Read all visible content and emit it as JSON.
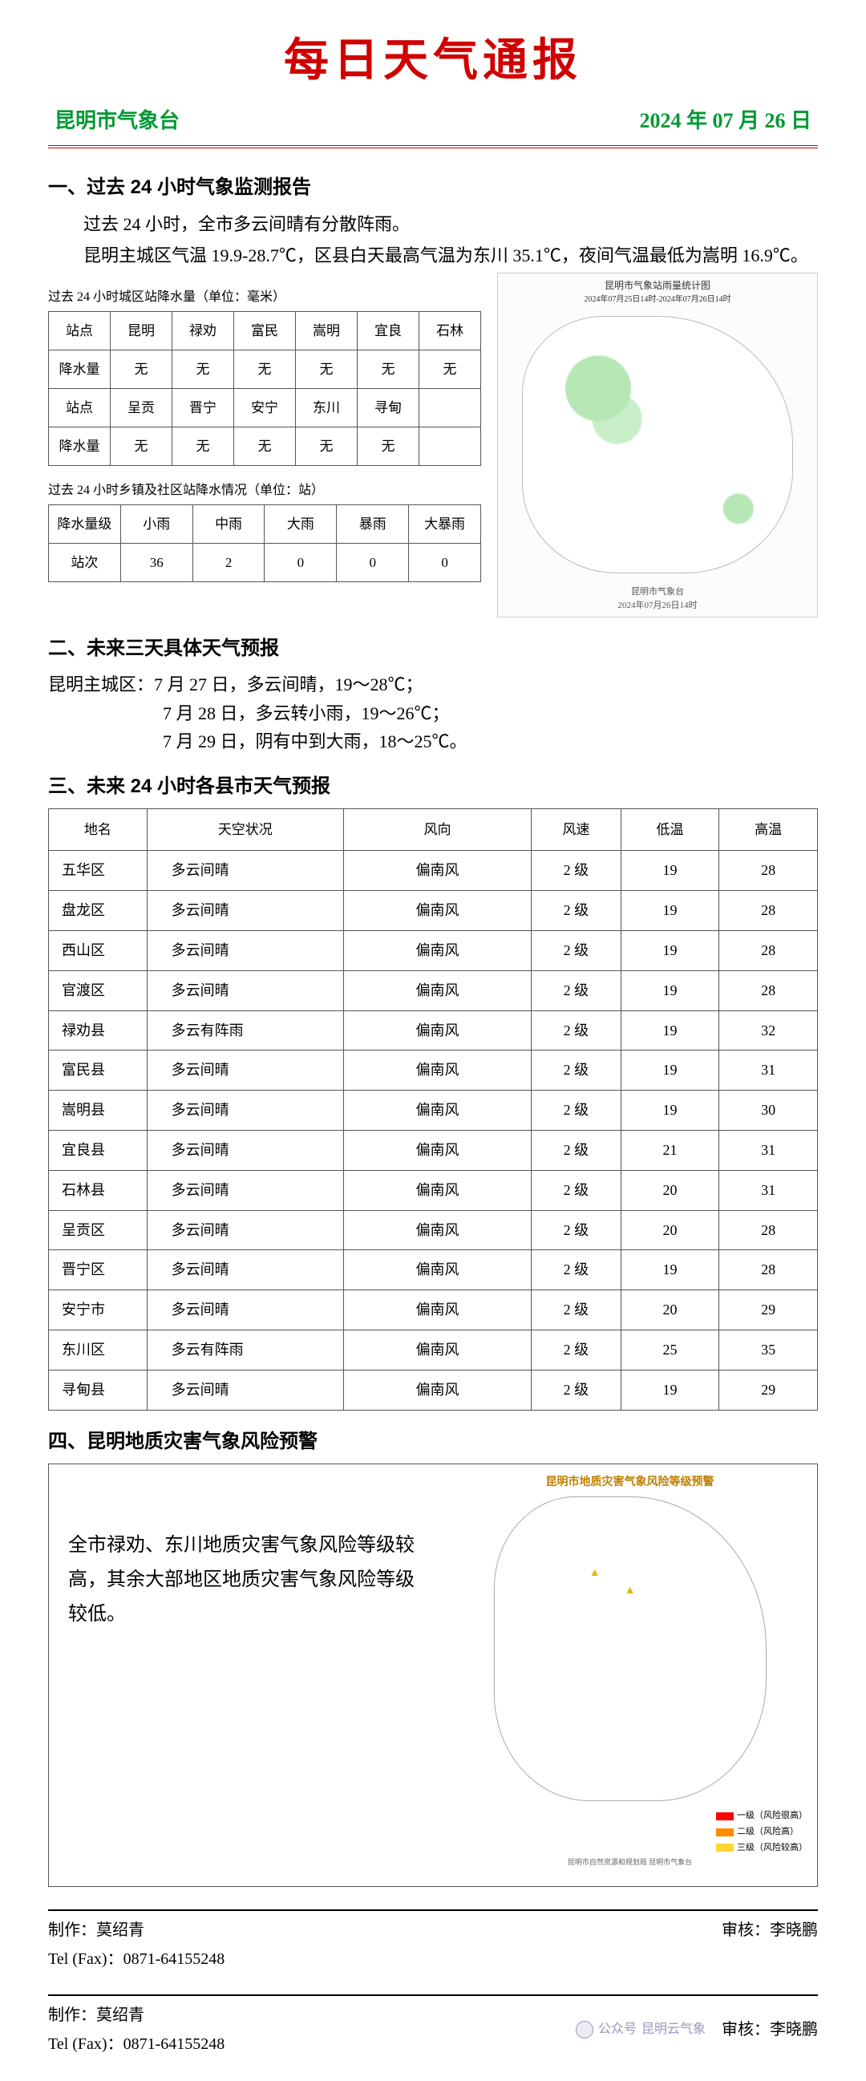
{
  "title": "每日天气通报",
  "issuer": "昆明市气象台",
  "issue_date": "2024 年 07 月 26 日",
  "colors": {
    "title_red": "#d00000",
    "header_green": "#009933",
    "border": "#555555",
    "map_green": "#b6e8b6"
  },
  "sec1": {
    "heading": "一、过去 24 小时气象监测报告",
    "p1": "过去 24 小时，全市多云间晴有分散阵雨。",
    "p2": "昆明主城区气温 19.9-28.7℃，区县白天最高气温为东川 35.1℃，夜间气温最低为嵩明 16.9℃。",
    "precip_caption": "过去 24 小时城区站降水量（单位：毫米）",
    "precip_table": {
      "row1_label": "站点",
      "row1": [
        "昆明",
        "禄劝",
        "富民",
        "嵩明",
        "宜良",
        "石林"
      ],
      "row2_label": "降水量",
      "row2": [
        "无",
        "无",
        "无",
        "无",
        "无",
        "无"
      ],
      "row3_label": "站点",
      "row3": [
        "呈贡",
        "晋宁",
        "安宁",
        "东川",
        "寻甸",
        ""
      ],
      "row4_label": "降水量",
      "row4": [
        "无",
        "无",
        "无",
        "无",
        "无",
        ""
      ]
    },
    "station_caption": "过去 24 小时乡镇及社区站降水情况（单位：站）",
    "station_table": {
      "head_label": "降水量级",
      "cols": [
        "小雨",
        "中雨",
        "大雨",
        "暴雨",
        "大暴雨"
      ],
      "row_label": "站次",
      "row": [
        "36",
        "2",
        "0",
        "0",
        "0"
      ]
    },
    "map_title": "昆明市气象站雨量统计图",
    "map_time": "2024年07月25日14时-2024年07月26日14时",
    "map_source": "昆明市气象台",
    "map_source_time": "2024年07月26日14时"
  },
  "sec2": {
    "heading": "二、未来三天具体天气预报",
    "label": "昆明主城区：",
    "d1": "7 月 27 日，多云间晴，19～28℃；",
    "d2": "7 月 28 日，多云转小雨，19～26℃；",
    "d3": "7 月 29 日，阴有中到大雨，18～25℃。"
  },
  "sec3": {
    "heading": "三、未来 24 小时各县市天气预报",
    "cols": [
      "地名",
      "天空状况",
      "风向",
      "风速",
      "低温",
      "高温"
    ],
    "rows": [
      [
        "五华区",
        "多云间晴",
        "偏南风",
        "2 级",
        "19",
        "28"
      ],
      [
        "盘龙区",
        "多云间晴",
        "偏南风",
        "2 级",
        "19",
        "28"
      ],
      [
        "西山区",
        "多云间晴",
        "偏南风",
        "2 级",
        "19",
        "28"
      ],
      [
        "官渡区",
        "多云间晴",
        "偏南风",
        "2 级",
        "19",
        "28"
      ],
      [
        "禄劝县",
        "多云有阵雨",
        "偏南风",
        "2 级",
        "19",
        "32"
      ],
      [
        "富民县",
        "多云间晴",
        "偏南风",
        "2 级",
        "19",
        "31"
      ],
      [
        "嵩明县",
        "多云间晴",
        "偏南风",
        "2 级",
        "19",
        "30"
      ],
      [
        "宜良县",
        "多云间晴",
        "偏南风",
        "2 级",
        "21",
        "31"
      ],
      [
        "石林县",
        "多云间晴",
        "偏南风",
        "2 级",
        "20",
        "31"
      ],
      [
        "呈贡区",
        "多云间晴",
        "偏南风",
        "2 级",
        "20",
        "28"
      ],
      [
        "晋宁区",
        "多云间晴",
        "偏南风",
        "2 级",
        "19",
        "28"
      ],
      [
        "安宁市",
        "多云间晴",
        "偏南风",
        "2 级",
        "20",
        "29"
      ],
      [
        "东川区",
        "多云有阵雨",
        "偏南风",
        "2 级",
        "25",
        "35"
      ],
      [
        "寻甸县",
        "多云间晴",
        "偏南风",
        "2 级",
        "19",
        "29"
      ]
    ]
  },
  "sec4": {
    "heading": "四、昆明地质灾害气象风险预警",
    "text": "全市禄劝、东川地质灾害气象风险等级较高，其余大部地区地质灾害气象风险等级较低。",
    "map_title": "昆明市地质灾害气象风险等级预警",
    "legend": [
      {
        "color": "#ff0000",
        "label": "一级（风险很高）"
      },
      {
        "color": "#ff8c00",
        "label": "二级（风险高）"
      },
      {
        "color": "#ffd633",
        "label": "三级（风险较高）"
      }
    ],
    "map_footer": "昆明市自然资源和规划局 昆明市气象台"
  },
  "footer": {
    "maker_label": "制作：",
    "maker": "莫绍青",
    "reviewer_label": "审核：",
    "reviewer": "李晓鹏",
    "tel_label": "Tel (Fax)：",
    "tel": "0871-64155248",
    "watermark": "昆明云气象"
  }
}
